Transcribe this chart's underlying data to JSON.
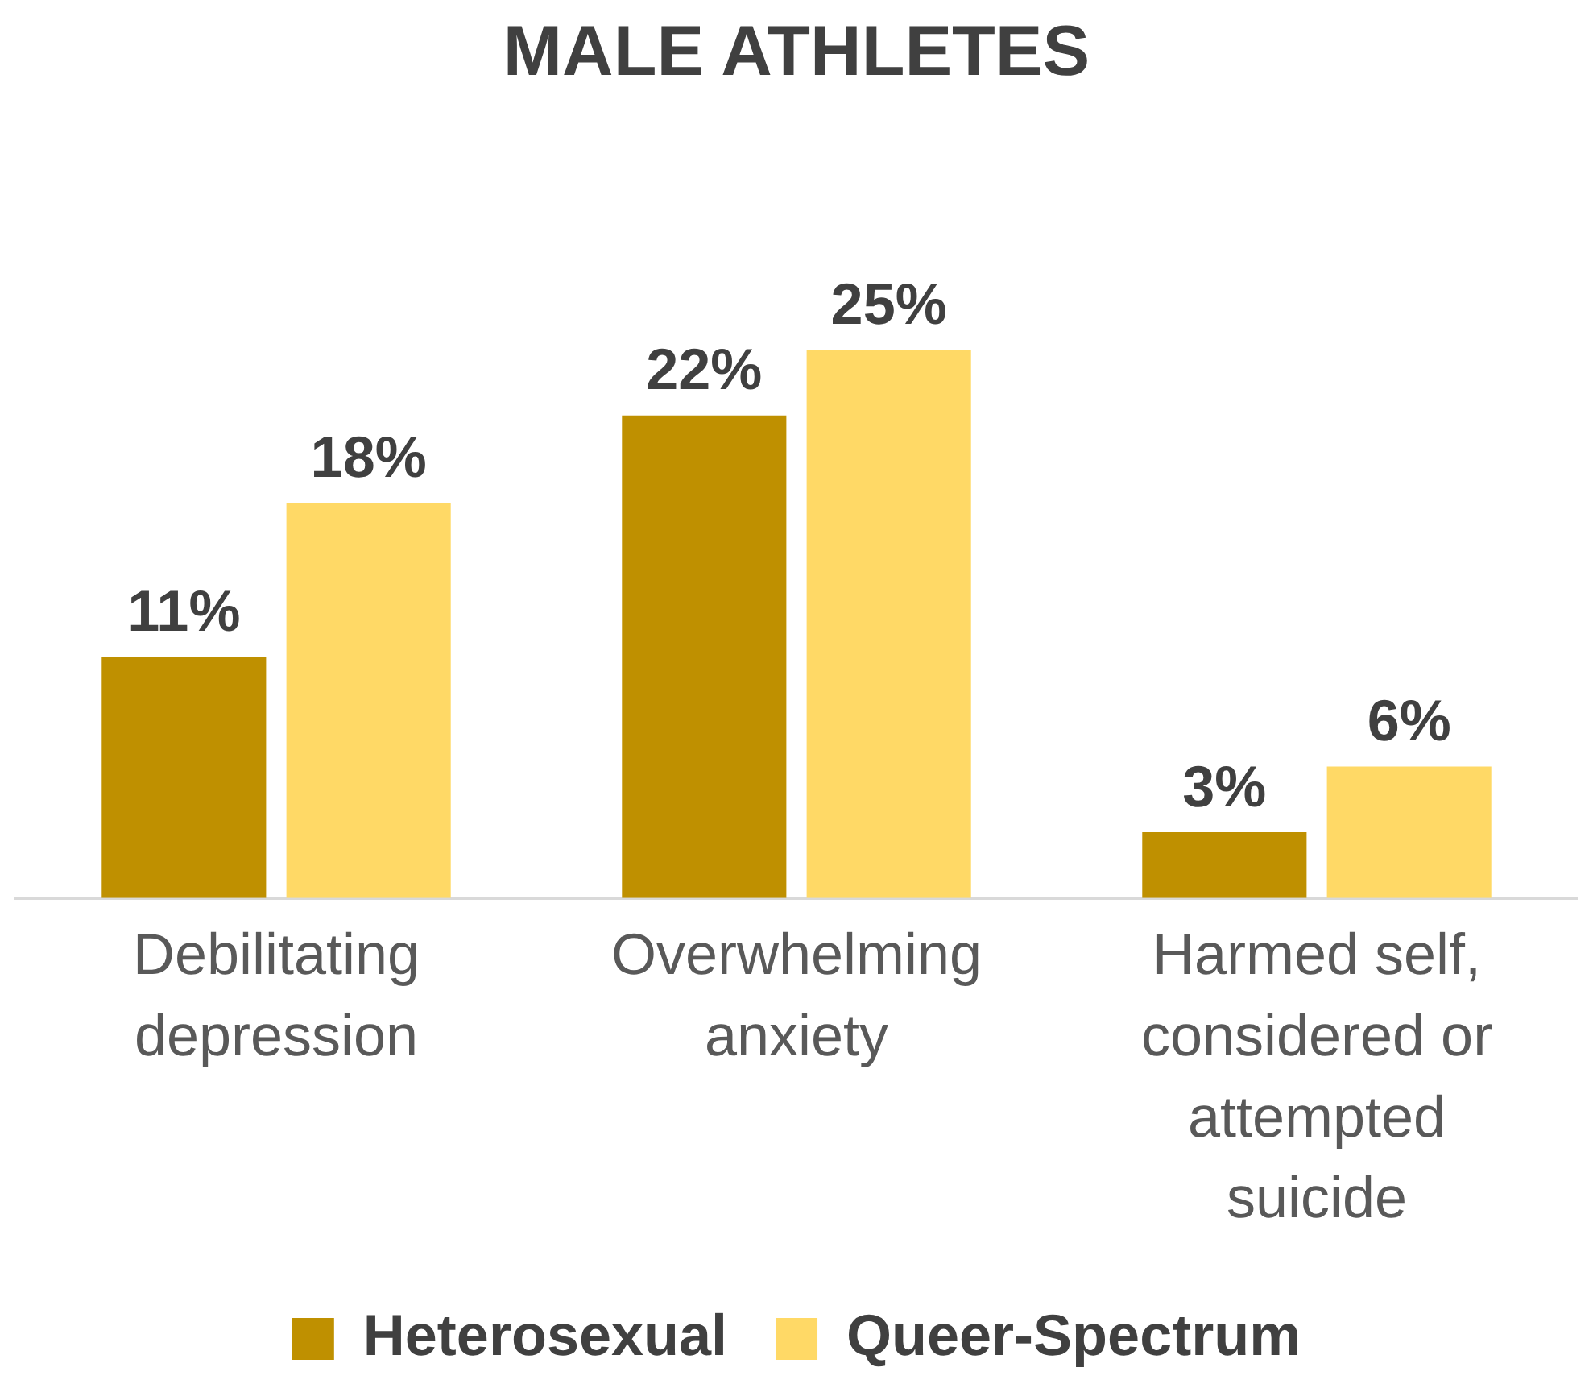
{
  "chart_data": {
    "type": "bar",
    "title": "MALE ATHLETES",
    "categories": [
      "Debilitating depression",
      "Overwhelming anxiety",
      "Harmed self, considered or attempted suicide"
    ],
    "series": [
      {
        "name": "Heterosexual",
        "color": "#bf9000",
        "values": [
          11,
          22,
          3
        ],
        "value_labels": [
          "11%",
          "22%",
          "3%"
        ]
      },
      {
        "name": "Queer-Spectrum",
        "color": "#ffd966",
        "values": [
          18,
          25,
          6
        ],
        "value_labels": [
          "18%",
          "25%",
          "6%"
        ]
      }
    ],
    "legend": "bottom",
    "grid": false,
    "tick_labels": "x"
  }
}
